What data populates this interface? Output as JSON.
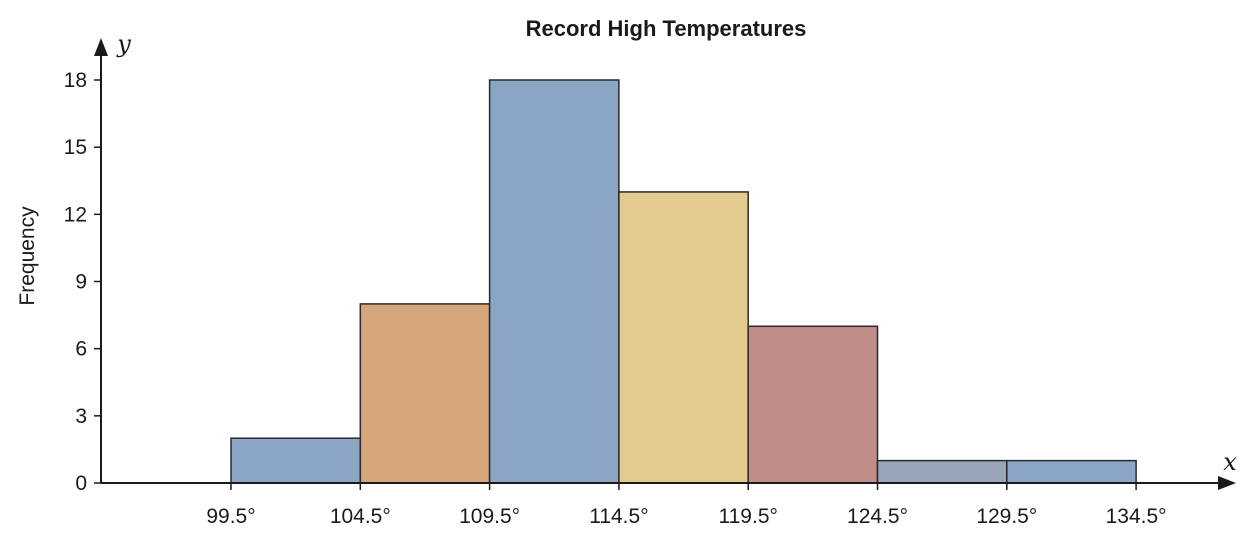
{
  "chart_data": {
    "type": "bar",
    "title": "Record High Temperatures",
    "ylabel": "Frequency",
    "x_axis_var": "x",
    "y_axis_var": "y",
    "bin_edges": [
      "99.5°",
      "104.5°",
      "109.5°",
      "114.5°",
      "119.5°",
      "124.5°",
      "129.5°",
      "134.5°"
    ],
    "bin_edge_values": [
      99.5,
      104.5,
      109.5,
      114.5,
      119.5,
      124.5,
      129.5,
      134.5
    ],
    "values": [
      2,
      8,
      18,
      13,
      7,
      1,
      1
    ],
    "bar_colors": [
      "#8aa6c4",
      "#d5a57c",
      "#8aa6c4",
      "#e3cb8e",
      "#c08e88",
      "#98a4b9",
      "#8aa6c4"
    ],
    "yticks": [
      0,
      3,
      6,
      9,
      12,
      15,
      18
    ],
    "ylim": [
      0,
      18
    ],
    "xlim": [
      94.5,
      139.5
    ],
    "grid": false
  }
}
